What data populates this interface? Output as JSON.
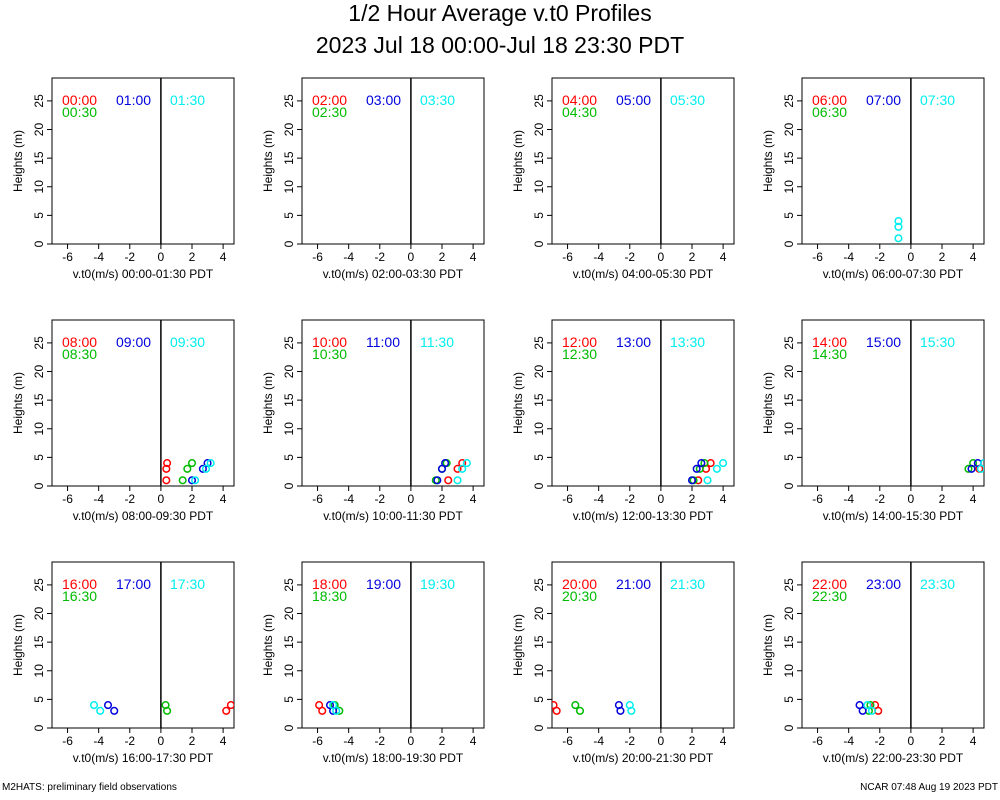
{
  "title": "1/2 Hour Average v.t0 Profiles",
  "subtitle": "2023 Jul 18 00:00-Jul 18 23:30 PDT",
  "footer_left": "M2HATS: preliminary field observations",
  "footer_right": "NCAR 07:48 Aug 19 2023 PDT",
  "colors": {
    "first": "#ff0000",
    "second": "#00bb00",
    "third": "#0000dd",
    "fourth": "#00eeee"
  },
  "ylabel": "Heights (m)",
  "chart_data": [
    {
      "type": "scatter",
      "xlabel": "v.t0(m/s) 00:00-01:30 PDT",
      "xlim": [
        -7,
        4.7
      ],
      "ylim": [
        0,
        29
      ],
      "xticks": [
        -6,
        -4,
        -2,
        0,
        2,
        4
      ],
      "yticks": [
        0,
        5,
        10,
        15,
        20,
        25
      ],
      "series": [
        {
          "name": "00:00",
          "color": "#ff0000",
          "points": []
        },
        {
          "name": "00:30",
          "color": "#00bb00",
          "points": []
        },
        {
          "name": "01:00",
          "color": "#0000dd",
          "points": []
        },
        {
          "name": "01:30",
          "color": "#00eeee",
          "points": []
        }
      ]
    },
    {
      "type": "scatter",
      "xlabel": "v.t0(m/s) 02:00-03:30 PDT",
      "xlim": [
        -7,
        4.7
      ],
      "ylim": [
        0,
        29
      ],
      "xticks": [
        -6,
        -4,
        -2,
        0,
        2,
        4
      ],
      "yticks": [
        0,
        5,
        10,
        15,
        20,
        25
      ],
      "series": [
        {
          "name": "02:00",
          "color": "#ff0000",
          "points": []
        },
        {
          "name": "02:30",
          "color": "#00bb00",
          "points": []
        },
        {
          "name": "03:00",
          "color": "#0000dd",
          "points": []
        },
        {
          "name": "03:30",
          "color": "#00eeee",
          "points": []
        }
      ]
    },
    {
      "type": "scatter",
      "xlabel": "v.t0(m/s) 04:00-05:30 PDT",
      "xlim": [
        -7,
        4.7
      ],
      "ylim": [
        0,
        29
      ],
      "xticks": [
        -6,
        -4,
        -2,
        0,
        2,
        4
      ],
      "yticks": [
        0,
        5,
        10,
        15,
        20,
        25
      ],
      "series": [
        {
          "name": "04:00",
          "color": "#ff0000",
          "points": []
        },
        {
          "name": "04:30",
          "color": "#00bb00",
          "points": []
        },
        {
          "name": "05:00",
          "color": "#0000dd",
          "points": []
        },
        {
          "name": "05:30",
          "color": "#00eeee",
          "points": []
        }
      ]
    },
    {
      "type": "scatter",
      "xlabel": "v.t0(m/s) 06:00-07:30 PDT",
      "xlim": [
        -7,
        4.7
      ],
      "ylim": [
        0,
        29
      ],
      "xticks": [
        -6,
        -4,
        -2,
        0,
        2,
        4
      ],
      "yticks": [
        0,
        5,
        10,
        15,
        20,
        25
      ],
      "series": [
        {
          "name": "06:00",
          "color": "#ff0000",
          "points": []
        },
        {
          "name": "06:30",
          "color": "#00bb00",
          "points": []
        },
        {
          "name": "07:00",
          "color": "#0000dd",
          "points": []
        },
        {
          "name": "07:30",
          "color": "#00eeee",
          "points": [
            [
              -0.8,
              1
            ],
            [
              -0.8,
              3
            ],
            [
              -0.8,
              4
            ]
          ]
        }
      ]
    },
    {
      "type": "scatter",
      "xlabel": "v.t0(m/s) 08:00-09:30 PDT",
      "xlim": [
        -7,
        4.7
      ],
      "ylim": [
        0,
        29
      ],
      "xticks": [
        -6,
        -4,
        -2,
        0,
        2,
        4
      ],
      "yticks": [
        0,
        5,
        10,
        15,
        20,
        25
      ],
      "series": [
        {
          "name": "08:00",
          "color": "#ff0000",
          "points": [
            [
              0.35,
              1
            ],
            [
              0.35,
              3
            ],
            [
              0.4,
              4
            ]
          ]
        },
        {
          "name": "08:30",
          "color": "#00bb00",
          "points": [
            [
              1.4,
              1
            ],
            [
              1.7,
              3
            ],
            [
              2.0,
              4
            ]
          ]
        },
        {
          "name": "09:00",
          "color": "#0000dd",
          "points": [
            [
              2.0,
              1
            ],
            [
              2.7,
              3
            ],
            [
              3.0,
              4
            ]
          ]
        },
        {
          "name": "09:30",
          "color": "#00eeee",
          "points": [
            [
              2.2,
              1
            ],
            [
              2.9,
              3
            ],
            [
              3.2,
              4
            ]
          ]
        }
      ]
    },
    {
      "type": "scatter",
      "xlabel": "v.t0(m/s) 10:00-11:30 PDT",
      "xlim": [
        -7,
        4.7
      ],
      "ylim": [
        0,
        29
      ],
      "xticks": [
        -6,
        -4,
        -2,
        0,
        2,
        4
      ],
      "yticks": [
        0,
        5,
        10,
        15,
        20,
        25
      ],
      "series": [
        {
          "name": "10:00",
          "color": "#ff0000",
          "points": [
            [
              2.4,
              1
            ],
            [
              3.0,
              3
            ],
            [
              3.3,
              4
            ]
          ]
        },
        {
          "name": "10:30",
          "color": "#00bb00",
          "points": [
            [
              1.6,
              1
            ],
            [
              2.0,
              3
            ],
            [
              2.3,
              4
            ]
          ]
        },
        {
          "name": "11:00",
          "color": "#0000dd",
          "points": [
            [
              1.7,
              1
            ],
            [
              2.0,
              3
            ],
            [
              2.2,
              4
            ]
          ]
        },
        {
          "name": "11:30",
          "color": "#00eeee",
          "points": [
            [
              3.0,
              1
            ],
            [
              3.3,
              3
            ],
            [
              3.6,
              4
            ]
          ]
        }
      ]
    },
    {
      "type": "scatter",
      "xlabel": "v.t0(m/s) 12:00-13:30 PDT",
      "xlim": [
        -7,
        4.7
      ],
      "ylim": [
        0,
        29
      ],
      "xticks": [
        -6,
        -4,
        -2,
        0,
        2,
        4
      ],
      "yticks": [
        0,
        5,
        10,
        15,
        20,
        25
      ],
      "series": [
        {
          "name": "12:00",
          "color": "#ff0000",
          "points": [
            [
              2.4,
              1
            ],
            [
              2.9,
              3
            ],
            [
              3.2,
              4
            ]
          ]
        },
        {
          "name": "12:30",
          "color": "#00bb00",
          "points": [
            [
              2.1,
              1
            ],
            [
              2.5,
              3
            ],
            [
              2.8,
              4
            ]
          ]
        },
        {
          "name": "13:00",
          "color": "#0000dd",
          "points": [
            [
              2.0,
              1
            ],
            [
              2.3,
              3
            ],
            [
              2.6,
              4
            ]
          ]
        },
        {
          "name": "13:30",
          "color": "#00eeee",
          "points": [
            [
              3.0,
              1
            ],
            [
              3.6,
              3
            ],
            [
              4.0,
              4
            ]
          ]
        }
      ]
    },
    {
      "type": "scatter",
      "xlabel": "v.t0(m/s) 14:00-15:30 PDT",
      "xlim": [
        -7,
        4.7
      ],
      "ylim": [
        0,
        29
      ],
      "xticks": [
        -6,
        -4,
        -2,
        0,
        2,
        4
      ],
      "yticks": [
        0,
        5,
        10,
        15,
        20,
        25
      ],
      "series": [
        {
          "name": "14:00",
          "color": "#ff0000",
          "points": [
            [
              4.4,
              3
            ],
            [
              4.7,
              4
            ]
          ]
        },
        {
          "name": "14:30",
          "color": "#00bb00",
          "points": [
            [
              3.7,
              3
            ],
            [
              4.0,
              4
            ]
          ]
        },
        {
          "name": "15:00",
          "color": "#0000dd",
          "points": [
            [
              3.9,
              3
            ],
            [
              4.3,
              4
            ]
          ]
        },
        {
          "name": "15:30",
          "color": "#00eeee",
          "points": [
            [
              4.5,
              3
            ],
            [
              4.7,
              4
            ]
          ]
        }
      ]
    },
    {
      "type": "scatter",
      "xlabel": "v.t0(m/s) 16:00-17:30 PDT",
      "xlim": [
        -7,
        4.7
      ],
      "ylim": [
        0,
        29
      ],
      "xticks": [
        -6,
        -4,
        -2,
        0,
        2,
        4
      ],
      "yticks": [
        0,
        5,
        10,
        15,
        20,
        25
      ],
      "series": [
        {
          "name": "16:00",
          "color": "#ff0000",
          "points": [
            [
              4.2,
              3
            ],
            [
              4.5,
              4
            ]
          ]
        },
        {
          "name": "16:30",
          "color": "#00bb00",
          "points": [
            [
              0.4,
              3
            ],
            [
              0.3,
              4
            ]
          ]
        },
        {
          "name": "17:00",
          "color": "#0000dd",
          "points": [
            [
              -3.0,
              3
            ],
            [
              -3.4,
              4
            ]
          ]
        },
        {
          "name": "17:30",
          "color": "#00eeee",
          "points": [
            [
              -3.9,
              3
            ],
            [
              -4.3,
              4
            ]
          ]
        }
      ]
    },
    {
      "type": "scatter",
      "xlabel": "v.t0(m/s) 18:00-19:30 PDT",
      "xlim": [
        -7,
        4.7
      ],
      "ylim": [
        0,
        29
      ],
      "xticks": [
        -6,
        -4,
        -2,
        0,
        2,
        4
      ],
      "yticks": [
        0,
        5,
        10,
        15,
        20,
        25
      ],
      "series": [
        {
          "name": "18:00",
          "color": "#ff0000",
          "points": [
            [
              -5.7,
              3
            ],
            [
              -5.9,
              4
            ]
          ]
        },
        {
          "name": "18:30",
          "color": "#00bb00",
          "points": [
            [
              -4.6,
              3
            ],
            [
              -4.9,
              4
            ]
          ]
        },
        {
          "name": "19:00",
          "color": "#0000dd",
          "points": [
            [
              -5.0,
              3
            ],
            [
              -5.2,
              4
            ]
          ]
        },
        {
          "name": "19:30",
          "color": "#00eeee",
          "points": [
            [
              -4.8,
              3
            ],
            [
              -5.0,
              4
            ]
          ]
        }
      ]
    },
    {
      "type": "scatter",
      "xlabel": "v.t0(m/s) 20:00-21:30 PDT",
      "xlim": [
        -7,
        4.7
      ],
      "ylim": [
        0,
        29
      ],
      "xticks": [
        -6,
        -4,
        -2,
        0,
        2,
        4
      ],
      "yticks": [
        0,
        5,
        10,
        15,
        20,
        25
      ],
      "series": [
        {
          "name": "20:00",
          "color": "#ff0000",
          "points": [
            [
              -6.7,
              3
            ],
            [
              -6.9,
              4
            ]
          ]
        },
        {
          "name": "20:30",
          "color": "#00bb00",
          "points": [
            [
              -5.2,
              3
            ],
            [
              -5.5,
              4
            ]
          ]
        },
        {
          "name": "21:00",
          "color": "#0000dd",
          "points": [
            [
              -2.6,
              3
            ],
            [
              -2.7,
              4
            ]
          ]
        },
        {
          "name": "21:30",
          "color": "#00eeee",
          "points": [
            [
              -1.9,
              3
            ],
            [
              -2.0,
              4
            ]
          ]
        }
      ]
    },
    {
      "type": "scatter",
      "xlabel": "v.t0(m/s) 22:00-23:30 PDT",
      "xlim": [
        -7,
        4.7
      ],
      "ylim": [
        0,
        29
      ],
      "xticks": [
        -6,
        -4,
        -2,
        0,
        2,
        4
      ],
      "yticks": [
        0,
        5,
        10,
        15,
        20,
        25
      ],
      "series": [
        {
          "name": "22:00",
          "color": "#ff0000",
          "points": [
            [
              -2.1,
              3
            ],
            [
              -2.3,
              4
            ]
          ]
        },
        {
          "name": "22:30",
          "color": "#00bb00",
          "points": [
            [
              -2.7,
              3
            ],
            [
              -2.6,
              4
            ]
          ]
        },
        {
          "name": "23:00",
          "color": "#0000dd",
          "points": [
            [
              -3.1,
              3
            ],
            [
              -3.3,
              4
            ]
          ]
        },
        {
          "name": "23:30",
          "color": "#00eeee",
          "points": [
            [
              -2.5,
              3
            ],
            [
              -2.8,
              4
            ]
          ]
        }
      ]
    }
  ]
}
